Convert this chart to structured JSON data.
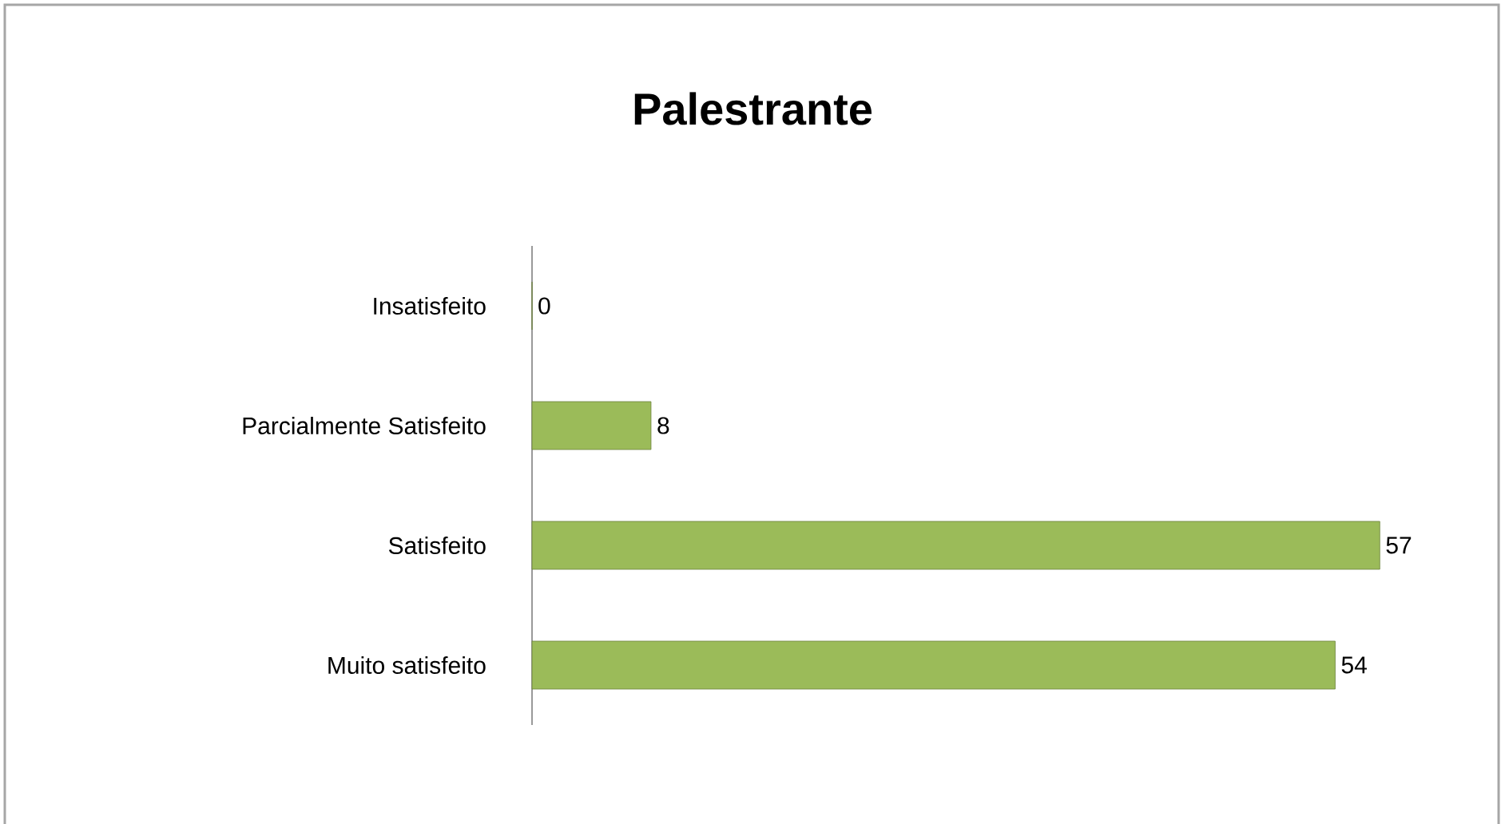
{
  "chart_data": {
    "type": "bar",
    "orientation": "horizontal",
    "title": "Palestrante",
    "categories": [
      "Insatisfeito",
      "Parcialmente Satisfeito",
      "Satisfeito",
      "Muito satisfeito"
    ],
    "values": [
      0,
      8,
      57,
      54
    ],
    "color": "#9bbb59",
    "data_labels": true
  }
}
